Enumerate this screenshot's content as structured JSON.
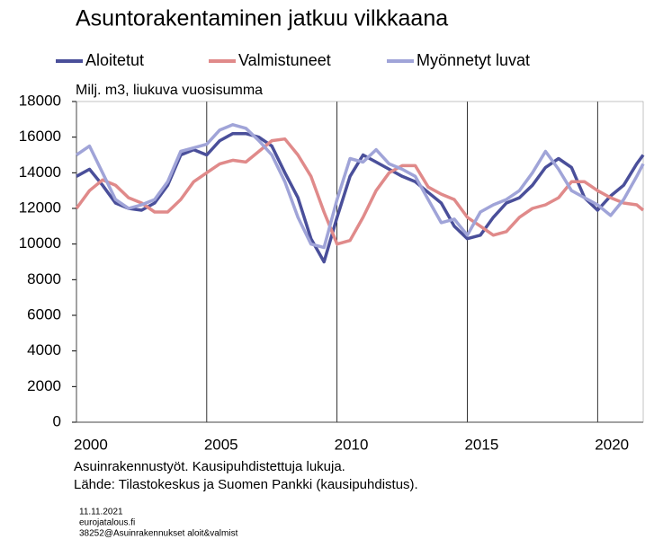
{
  "chart_data": {
    "type": "line",
    "title": "Asuntorakentaminen  jatkuu vilkkaana",
    "ylabel": "Milj. m3, liukuva  vuosisumma",
    "notes": [
      "Asuinrakennustyöt.  Kausipuhdistettuja  lukuja.",
      "Lähde: Tilastokeskus ja Suomen Pankki (kausipuhdistus)."
    ],
    "footer": [
      "11.11.2021",
      "eurojatalous.fi",
      "38252@Asuinrakennukset aloit&valmist"
    ],
    "x": [
      2000,
      2000.5,
      2001,
      2001.5,
      2002,
      2002.5,
      2003,
      2003.5,
      2004,
      2004.5,
      2005,
      2005.5,
      2006,
      2006.5,
      2007,
      2007.5,
      2008,
      2008.5,
      2009,
      2009.5,
      2010,
      2010.5,
      2011,
      2011.5,
      2012,
      2012.5,
      2013,
      2013.5,
      2014,
      2014.5,
      2015,
      2015.5,
      2016,
      2016.5,
      2017,
      2017.5,
      2018,
      2018.5,
      2019,
      2019.5,
      2020,
      2020.5,
      2021,
      2021.5,
      2021.75
    ],
    "series": [
      {
        "name": "Aloitetut",
        "color": "#4a4f9a",
        "values": [
          13800,
          14200,
          13300,
          12300,
          12000,
          11900,
          12300,
          13300,
          15000,
          15300,
          15000,
          15800,
          16200,
          16200,
          16000,
          15500,
          14000,
          12600,
          10300,
          9000,
          11500,
          13800,
          15000,
          14600,
          14200,
          13800,
          13500,
          12900,
          12300,
          11000,
          10300,
          10500,
          11500,
          12300,
          12600,
          13300,
          14300,
          14800,
          14300,
          12600,
          11900,
          12700,
          13300,
          14500,
          15000
        ]
      },
      {
        "name": "Valmistuneet",
        "color": "#e08a8a",
        "values": [
          12000,
          13000,
          13600,
          13300,
          12600,
          12300,
          11800,
          11800,
          12500,
          13500,
          14000,
          14500,
          14700,
          14600,
          15200,
          15800,
          15900,
          15000,
          13800,
          11800,
          10000,
          10200,
          11500,
          13000,
          14000,
          14400,
          14400,
          13200,
          12800,
          12500,
          11500,
          11000,
          10500,
          10700,
          11500,
          12000,
          12200,
          12600,
          13500,
          13500,
          13000,
          12600,
          12300,
          12200,
          11900
        ]
      },
      {
        "name": "Myönnetyt luvat",
        "color": "#a0a4d8",
        "values": [
          15000,
          15500,
          14000,
          12500,
          12000,
          12200,
          12500,
          13500,
          15200,
          15400,
          15600,
          16400,
          16700,
          16500,
          15800,
          15000,
          13500,
          11500,
          10000,
          9800,
          12500,
          14800,
          14600,
          15300,
          14500,
          14200,
          13800,
          12500,
          11200,
          11400,
          10500,
          11800,
          12200,
          12500,
          13000,
          14000,
          15200,
          14200,
          13000,
          12600,
          12200,
          11600,
          12500,
          13800,
          14500
        ]
      }
    ],
    "xlim": [
      2000,
      2021.75
    ],
    "xticks": [
      2000,
      2005,
      2010,
      2015,
      2020
    ],
    "ylim": [
      0,
      18000
    ],
    "yticks": [
      0,
      2000,
      4000,
      6000,
      8000,
      10000,
      12000,
      14000,
      16000,
      18000
    ],
    "grid": "x"
  }
}
